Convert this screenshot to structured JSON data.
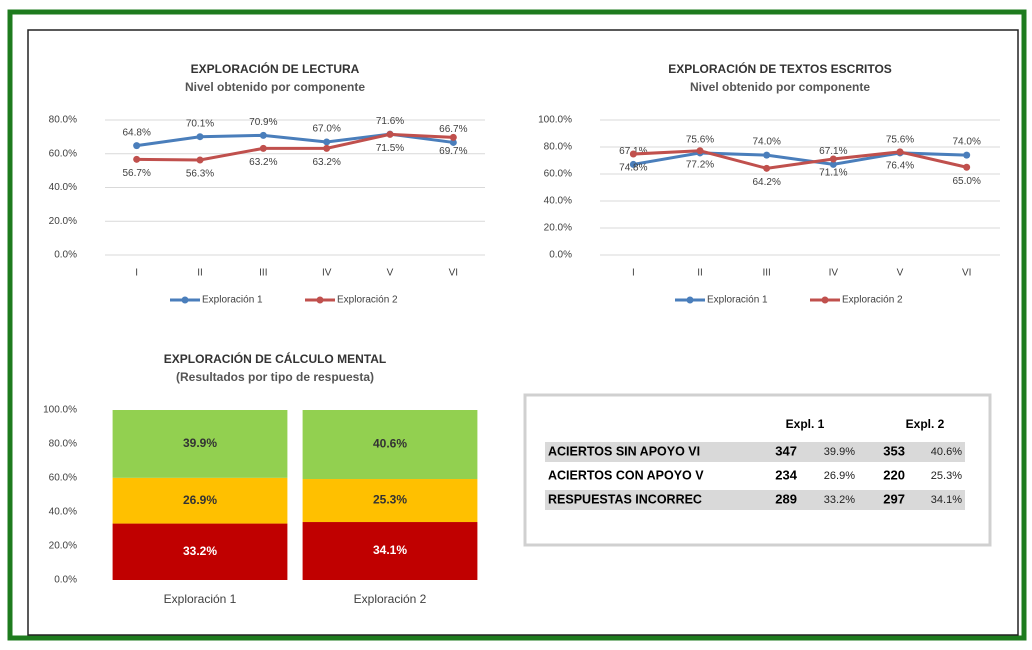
{
  "chart_data": [
    {
      "type": "line",
      "title": "EXPLORACIÓN DE LECTURA",
      "subtitle": "Nivel obtenido por componente",
      "categories": [
        "I",
        "II",
        "III",
        "IV",
        "V",
        "VI"
      ],
      "series": [
        {
          "name": "Exploración 1",
          "color": "#4a7ebb",
          "values": [
            64.8,
            70.1,
            70.9,
            67.0,
            71.6,
            66.7
          ],
          "value_labels": [
            "64.8%",
            "70.1%",
            "70.9%",
            "67.0%",
            "71.6%",
            "66.7%"
          ]
        },
        {
          "name": "Exploración 2",
          "color": "#c0504d",
          "values": [
            56.7,
            56.3,
            63.2,
            63.2,
            71.5,
            69.7
          ],
          "value_labels": [
            "56.7%",
            "56.3%",
            "63.2%",
            "63.2%",
            "71.5%",
            "69.7%"
          ]
        }
      ],
      "ylim": [
        0,
        80
      ],
      "yticks": [
        {
          "value": 0,
          "label": "0.0%"
        },
        {
          "value": 20,
          "label": "20.0%"
        },
        {
          "value": 40,
          "label": "40.0%"
        },
        {
          "value": 60,
          "label": "60.0%"
        },
        {
          "value": 80,
          "label": "80.0%"
        }
      ],
      "grid": true,
      "legend": "bottom"
    },
    {
      "type": "line",
      "title": "EXPLORACIÓN DE TEXTOS ESCRITOS",
      "subtitle": "Nivel obtenido por componente",
      "categories": [
        "I",
        "II",
        "III",
        "IV",
        "V",
        "VI"
      ],
      "series": [
        {
          "name": "Exploración 1",
          "color": "#4a7ebb",
          "values": [
            67.1,
            75.6,
            74.0,
            67.1,
            75.6,
            74.0
          ],
          "value_labels": [
            "67.1%",
            "75.6%",
            "74.0%",
            "67.1%",
            "75.6%",
            "74.0%"
          ]
        },
        {
          "name": "Exploración 2",
          "color": "#c0504d",
          "values": [
            74.8,
            77.2,
            64.2,
            71.1,
            76.4,
            65.0
          ],
          "value_labels": [
            "74.8%",
            "77.2%",
            "64.2%",
            "71.1%",
            "76.4%",
            "65.0%"
          ]
        }
      ],
      "ylim": [
        0,
        100
      ],
      "yticks": [
        {
          "value": 0,
          "label": "0.0%"
        },
        {
          "value": 20,
          "label": "20.0%"
        },
        {
          "value": 40,
          "label": "40.0%"
        },
        {
          "value": 60,
          "label": "60.0%"
        },
        {
          "value": 80,
          "label": "80.0%"
        },
        {
          "value": 100,
          "label": "100.0%"
        }
      ],
      "grid": true,
      "legend": "bottom"
    },
    {
      "type": "stacked_bar",
      "title": "EXPLORACIÓN DE CÁLCULO MENTAL",
      "subtitle": "(Resultados por tipo de respuesta)",
      "categories": [
        "Exploración 1",
        "Exploración 2"
      ],
      "series": [
        {
          "color": "#c00000",
          "values": [
            33.2,
            34.1
          ],
          "value_labels": [
            "33.2%",
            "34.1%"
          ]
        },
        {
          "color": "#ffc000",
          "values": [
            26.9,
            25.3
          ],
          "value_labels": [
            "26.9%",
            "25.3%"
          ]
        },
        {
          "color": "#92d050",
          "values": [
            39.9,
            40.6
          ],
          "value_labels": [
            "39.9%",
            "40.6%"
          ]
        }
      ],
      "ylim": [
        0,
        100
      ],
      "yticks": [
        {
          "value": 0,
          "label": "0.0%"
        },
        {
          "value": 20,
          "label": "20.0%"
        },
        {
          "value": 40,
          "label": "40.0%"
        },
        {
          "value": 60,
          "label": "60.0%"
        },
        {
          "value": 80,
          "label": "80.0%"
        },
        {
          "value": 100,
          "label": "100.0%"
        }
      ],
      "grid": false
    }
  ],
  "table": {
    "headers": [
      "Expl. 1",
      "Expl. 2"
    ],
    "rows": [
      [
        "ACIERTOS SIN APOYO VI",
        "347",
        "39.9%",
        "353",
        "40.6%"
      ],
      [
        "ACIERTOS CON APOYO V",
        "234",
        "26.9%",
        "220",
        "25.3%"
      ],
      [
        "RESPUESTAS INCORREC",
        "289",
        "33.2%",
        "297",
        "34.1%"
      ]
    ]
  }
}
